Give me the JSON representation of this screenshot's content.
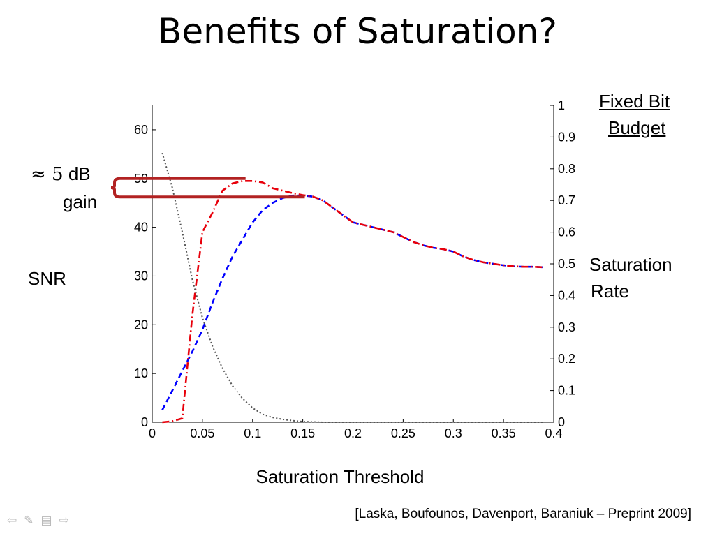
{
  "slide": {
    "title": "Benefits of Saturation?",
    "citation": "[Laska, Boufounos, Davenport, Baraniuk – Preprint 2009]"
  },
  "annotations": {
    "gain_line1_symbol": "≈ 5",
    "gain_line1_unit": "dB",
    "gain_line2": "gain",
    "left_axis": "SNR",
    "right_axis_line1": "Saturation",
    "right_axis_line2": "Rate",
    "budget_line1": "Fixed Bit",
    "budget_line2": "Budget",
    "bracket_color": "#b22222"
  },
  "nav_icons": [
    "arrow-left-icon",
    "pen-icon",
    "menu-icon",
    "arrow-right-icon"
  ],
  "chart_data": {
    "type": "line",
    "xlabel": "Saturation Threshold",
    "ylabel": "SNR",
    "y2label": "Saturation Rate",
    "xlim": [
      0,
      0.4
    ],
    "ylim": [
      0,
      65
    ],
    "y2lim": [
      0,
      1
    ],
    "xticks": [
      0,
      0.05,
      0.1,
      0.15,
      0.2,
      0.25,
      0.3,
      0.35,
      0.4
    ],
    "xtick_labels": [
      "0",
      "0.05",
      "0.1",
      "0.15",
      "0.2",
      "0.25",
      "0.3",
      "0.35",
      "0.4"
    ],
    "yticks": [
      0,
      10,
      20,
      30,
      40,
      50,
      60
    ],
    "ytick_labels": [
      "0",
      "10",
      "20",
      "30",
      "40",
      "50",
      "60"
    ],
    "y2ticks": [
      0,
      0.1,
      0.2,
      0.3,
      0.4,
      0.5,
      0.6,
      0.7,
      0.8,
      0.9,
      1
    ],
    "y2tick_labels": [
      "0",
      "0.1",
      "0.2",
      "0.3",
      "0.4",
      "0.5",
      "0.6",
      "0.7",
      "0.8",
      "0.9",
      "1"
    ],
    "series": [
      {
        "name": "SNR (blue dashed)",
        "axis": "left",
        "color": "#0000ff",
        "dash": "8,5",
        "x": [
          0.01,
          0.02,
          0.03,
          0.04,
          0.05,
          0.06,
          0.07,
          0.08,
          0.09,
          0.1,
          0.11,
          0.12,
          0.13,
          0.14,
          0.15,
          0.16,
          0.17,
          0.18,
          0.19,
          0.2,
          0.21,
          0.22,
          0.23,
          0.24,
          0.25,
          0.26,
          0.27,
          0.28,
          0.29,
          0.3,
          0.31,
          0.32,
          0.33,
          0.34,
          0.35,
          0.36,
          0.37,
          0.38,
          0.39
        ],
        "y": [
          2.5,
          6.5,
          10.5,
          14.5,
          19,
          24.5,
          29.5,
          34,
          37.5,
          41,
          43.5,
          45,
          46,
          46.5,
          46.5,
          46.3,
          45.5,
          44,
          42.5,
          41,
          40.5,
          40,
          39.5,
          39,
          38,
          37,
          36.3,
          35.8,
          35.5,
          35,
          34,
          33.3,
          32.8,
          32.5,
          32.2,
          32,
          31.9,
          31.9,
          31.8
        ]
      },
      {
        "name": "SNR with saturation (red dash-dot)",
        "axis": "left",
        "color": "#e8000b",
        "dash": "10,4,2,4",
        "x": [
          0.01,
          0.02,
          0.03,
          0.04,
          0.05,
          0.06,
          0.07,
          0.08,
          0.09,
          0.1,
          0.11,
          0.12,
          0.13,
          0.14,
          0.15,
          0.16,
          0.17,
          0.18,
          0.19,
          0.2,
          0.21,
          0.22,
          0.23,
          0.24,
          0.25,
          0.26,
          0.27,
          0.28,
          0.29,
          0.3,
          0.31,
          0.32,
          0.33,
          0.34,
          0.35,
          0.36,
          0.37,
          0.38,
          0.39
        ],
        "y": [
          0,
          0.2,
          0.8,
          22,
          39,
          43,
          47.5,
          49,
          49.5,
          49.5,
          49.2,
          48,
          47.5,
          47,
          46.6,
          46.3,
          45.5,
          44,
          42.5,
          41,
          40.5,
          40,
          39.5,
          39,
          38,
          37,
          36.3,
          35.8,
          35.5,
          35,
          34,
          33.3,
          32.8,
          32.5,
          32.2,
          32,
          31.9,
          31.9,
          31.8
        ]
      },
      {
        "name": "Saturation rate (gray dotted)",
        "axis": "right",
        "color": "#555555",
        "dash": "2,3",
        "x": [
          0.01,
          0.02,
          0.03,
          0.04,
          0.05,
          0.06,
          0.07,
          0.08,
          0.09,
          0.1,
          0.11,
          0.12,
          0.13,
          0.14,
          0.15,
          0.16,
          0.17,
          0.18,
          0.19,
          0.2,
          0.22,
          0.25,
          0.3,
          0.35,
          0.39
        ],
        "y": [
          0.85,
          0.74,
          0.6,
          0.45,
          0.33,
          0.24,
          0.17,
          0.115,
          0.075,
          0.045,
          0.025,
          0.015,
          0.009,
          0.005,
          0.002,
          0.001,
          0,
          0,
          0,
          0,
          0,
          0,
          0,
          0,
          0
        ]
      }
    ],
    "gain_annotation": {
      "label": "≈ 5 dB gain",
      "upper_level": 50,
      "lower_level": 46.2,
      "upper_x_end": 0.093,
      "lower_x_end": 0.152
    }
  }
}
